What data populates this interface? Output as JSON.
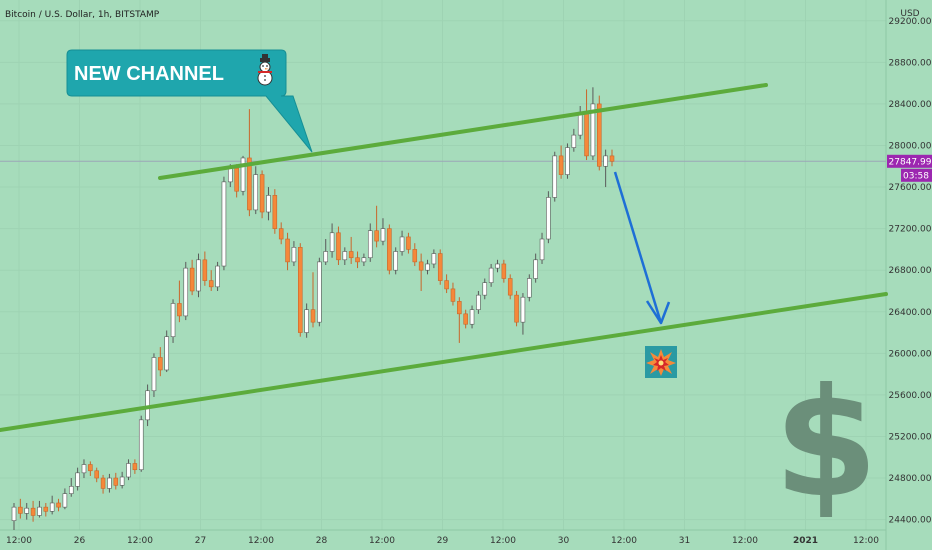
{
  "header": {
    "title": "Bitcoin / U.S. Dollar, 1h, BITSTAMP"
  },
  "price_scale": {
    "currency": "USD"
  },
  "last_price_tag": {
    "price": "27847.99",
    "countdown": "03:58",
    "color": "#9c27b0"
  },
  "callout": {
    "text": "NEW CHANNEL",
    "emoji": "☃",
    "color": "#1fa6ad"
  },
  "annotations": {
    "burst_icon": "collision-icon",
    "dollar_symbol": "$"
  },
  "colors": {
    "background": "#a6dcbb",
    "up": "#ffffff",
    "down": "#f5883a",
    "channel": "#5cab3c",
    "arrow": "#1e6fd6"
  },
  "chart_data": {
    "type": "candlestick",
    "ylim": [
      24300,
      29400
    ],
    "yticks": [
      24400,
      24800,
      25200,
      25600,
      26000,
      26400,
      26800,
      27200,
      27600,
      28000,
      28400,
      28800,
      29200
    ],
    "ytick_labels": [
      "24400.00",
      "24800.00",
      "25200.00",
      "25600.00",
      "26000.00",
      "26400.00",
      "26800.00",
      "27200.00",
      "27600.00",
      "28000.00",
      "28400.00",
      "28800.00",
      "29200.00"
    ],
    "xticks": [
      "12:00",
      "26",
      "12:00",
      "27",
      "12:00",
      "28",
      "12:00",
      "29",
      "12:00",
      "30",
      "12:00",
      "31",
      "12:00",
      "2021",
      "12:00"
    ],
    "bold_xticks": [
      "2021"
    ],
    "candles": [
      [
        24390,
        24520,
        24300,
        24560
      ],
      [
        24520,
        24460,
        24410,
        24600
      ],
      [
        24460,
        24510,
        24400,
        24560
      ],
      [
        24510,
        24440,
        24380,
        24580
      ],
      [
        24440,
        24520,
        24420,
        24580
      ],
      [
        24520,
        24480,
        24430,
        24560
      ],
      [
        24480,
        24560,
        24450,
        24630
      ],
      [
        24560,
        24520,
        24480,
        24600
      ],
      [
        24520,
        24650,
        24500,
        24700
      ],
      [
        24650,
        24720,
        24620,
        24800
      ],
      [
        24720,
        24850,
        24680,
        24900
      ],
      [
        24850,
        24930,
        24800,
        24980
      ],
      [
        24930,
        24870,
        24820,
        24960
      ],
      [
        24870,
        24800,
        24760,
        24900
      ],
      [
        24800,
        24700,
        24650,
        24830
      ],
      [
        24700,
        24800,
        24660,
        24840
      ],
      [
        24800,
        24730,
        24690,
        24850
      ],
      [
        24730,
        24810,
        24700,
        24860
      ],
      [
        24810,
        24940,
        24780,
        24980
      ],
      [
        24940,
        24880,
        24840,
        24980
      ],
      [
        24880,
        25360,
        24860,
        25400
      ],
      [
        25360,
        25640,
        25300,
        25700
      ],
      [
        25640,
        25960,
        25580,
        26000
      ],
      [
        25960,
        25840,
        25780,
        26060
      ],
      [
        25840,
        26160,
        25820,
        26220
      ],
      [
        26160,
        26480,
        26100,
        26520
      ],
      [
        26480,
        26360,
        26300,
        26700
      ],
      [
        26360,
        26820,
        26320,
        26880
      ],
      [
        26820,
        26600,
        26560,
        26900
      ],
      [
        26600,
        26900,
        26540,
        26960
      ],
      [
        26900,
        26700,
        26650,
        26980
      ],
      [
        26700,
        26640,
        26600,
        26800
      ],
      [
        26640,
        26840,
        26600,
        26880
      ],
      [
        26840,
        27650,
        26800,
        27700
      ],
      [
        27650,
        27780,
        27600,
        27820
      ],
      [
        27780,
        27560,
        27500,
        27820
      ],
      [
        27560,
        27880,
        27520,
        27900
      ],
      [
        27880,
        27380,
        27320,
        28350
      ],
      [
        27380,
        27720,
        27340,
        27800
      ],
      [
        27720,
        27360,
        27300,
        27760
      ],
      [
        27360,
        27520,
        27280,
        27600
      ],
      [
        27520,
        27200,
        27150,
        27580
      ],
      [
        27200,
        27100,
        27050,
        27260
      ],
      [
        27100,
        26880,
        26800,
        27160
      ],
      [
        26880,
        27020,
        26840,
        27080
      ],
      [
        27020,
        26200,
        26160,
        27060
      ],
      [
        26200,
        26420,
        26150,
        26480
      ],
      [
        26420,
        26300,
        26250,
        26780
      ],
      [
        26300,
        26880,
        26260,
        26920
      ],
      [
        26880,
        26980,
        26850,
        27100
      ],
      [
        26980,
        27160,
        26920,
        27250
      ],
      [
        27160,
        26900,
        26850,
        27220
      ],
      [
        26900,
        26980,
        26850,
        27020
      ],
      [
        26980,
        26920,
        26860,
        27120
      ],
      [
        26920,
        26880,
        26820,
        26980
      ],
      [
        26880,
        26920,
        26840,
        26960
      ],
      [
        26920,
        27180,
        26880,
        27250
      ],
      [
        27180,
        27080,
        27020,
        27420
      ],
      [
        27080,
        27200,
        27040,
        27300
      ],
      [
        27200,
        26800,
        26760,
        27240
      ],
      [
        26800,
        26980,
        26760,
        27020
      ],
      [
        26980,
        27120,
        26940,
        27180
      ],
      [
        27120,
        27000,
        26960,
        27160
      ],
      [
        27000,
        26880,
        26840,
        27060
      ],
      [
        26880,
        26800,
        26600,
        26960
      ],
      [
        26800,
        26860,
        26760,
        26900
      ],
      [
        26860,
        26960,
        26820,
        27000
      ],
      [
        26960,
        26700,
        26660,
        27000
      ],
      [
        26700,
        26620,
        26580,
        26760
      ],
      [
        26620,
        26500,
        26460,
        26680
      ],
      [
        26500,
        26380,
        26100,
        26540
      ],
      [
        26380,
        26280,
        26240,
        26420
      ],
      [
        26280,
        26420,
        26240,
        26460
      ],
      [
        26420,
        26560,
        26380,
        26600
      ],
      [
        26560,
        26680,
        26520,
        26720
      ],
      [
        26680,
        26820,
        26640,
        26860
      ],
      [
        26820,
        26860,
        26780,
        26900
      ],
      [
        26860,
        26720,
        26680,
        26900
      ],
      [
        26720,
        26560,
        26520,
        26760
      ],
      [
        26560,
        26300,
        26260,
        26600
      ],
      [
        26300,
        26540,
        26180,
        26580
      ],
      [
        26540,
        26720,
        26500,
        26760
      ],
      [
        26720,
        26900,
        26680,
        26960
      ],
      [
        26900,
        27100,
        26860,
        27160
      ],
      [
        27100,
        27500,
        27060,
        27560
      ],
      [
        27500,
        27900,
        27460,
        27940
      ],
      [
        27900,
        27720,
        27680,
        28000
      ],
      [
        27720,
        27980,
        27680,
        28020
      ],
      [
        27980,
        28100,
        27940,
        28160
      ],
      [
        28100,
        28320,
        28060,
        28380
      ],
      [
        28320,
        27900,
        27860,
        28540
      ],
      [
        27900,
        28400,
        27860,
        28560
      ],
      [
        28400,
        27800,
        27760,
        28480
      ],
      [
        27800,
        27900,
        27600,
        27960
      ],
      [
        27900,
        27848,
        27800,
        27960
      ]
    ]
  }
}
